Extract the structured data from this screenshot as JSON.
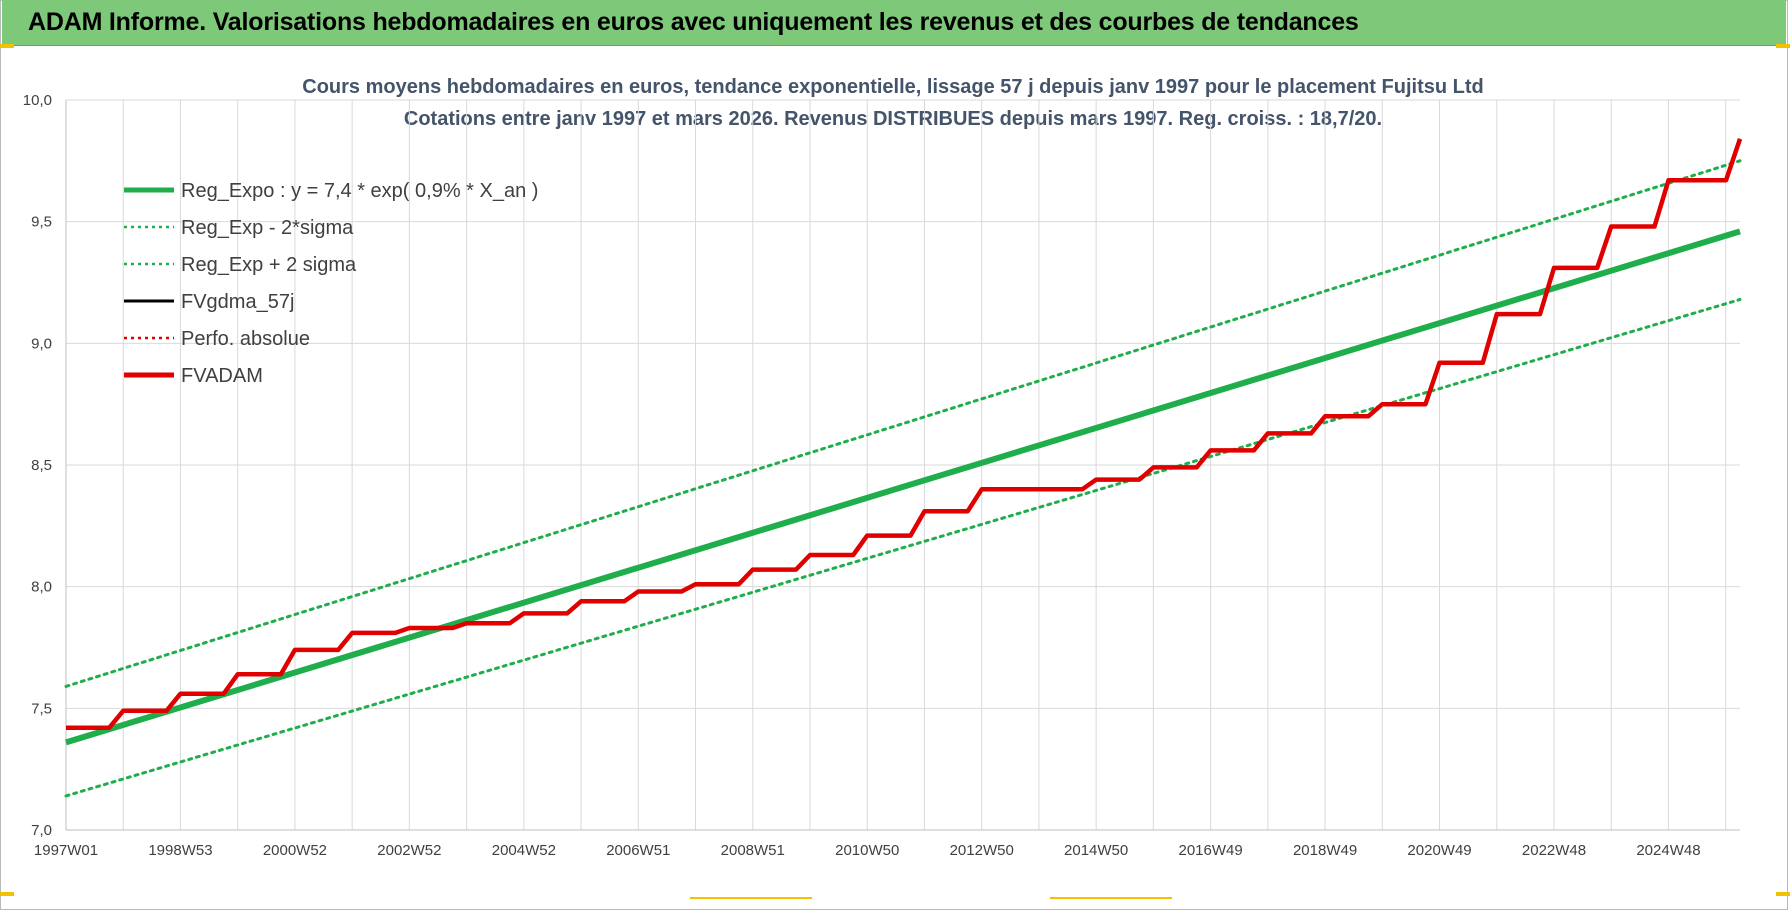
{
  "header": {
    "title": "ADAM Informe. Valorisations hebdomadaires en euros avec uniquement les revenus et des courbes de tendances"
  },
  "chart_data": {
    "type": "line",
    "title": "Cours moyens hebdomadaires en euros, tendance exponentielle, lissage 57 j depuis janv 1997 pour le placement Fujitsu Ltd",
    "subtitle": "Cotations entre janv 1997 et mars 2026. Revenus DISTRIBUES depuis mars 1997. Reg. croiss. : 18,7/20.",
    "xlabel": "",
    "ylabel": "",
    "x_range": [
      1997.0,
      2026.25
    ],
    "ylim": [
      7.0,
      10.0
    ],
    "y_ticks": [
      7.0,
      7.5,
      8.0,
      8.5,
      9.0,
      9.5,
      10.0
    ],
    "y_tick_labels": [
      "7,0",
      "7,5",
      "8,0",
      "8,5",
      "9,0",
      "9,5",
      "10,0"
    ],
    "x_tick_labels": [
      "1997W01",
      "1998W53",
      "2000W52",
      "2002W52",
      "2004W52",
      "2006W51",
      "2008W51",
      "2010W50",
      "2012W50",
      "2014W50",
      "2016W49",
      "2018W49",
      "2020W49",
      "2022W48",
      "2024W48"
    ],
    "x_tick_positions": [
      1997.0,
      1999.0,
      2001.0,
      2003.0,
      2005.0,
      2007.0,
      2009.0,
      2011.0,
      2013.0,
      2015.0,
      2017.0,
      2019.0,
      2021.0,
      2023.0,
      2025.0
    ],
    "grid": true,
    "legend_position": "top-left",
    "series": [
      {
        "name": "Reg_Expo : y = 7,4 * exp( 0,9% *  X_an )",
        "color": "#1fae4b",
        "style": "solid-thick",
        "x": [
          1997.0,
          2026.25
        ],
        "y": [
          7.36,
          9.46
        ]
      },
      {
        "name": "Reg_Exp - 2*sigma",
        "color": "#1fae4b",
        "style": "dotted",
        "x": [
          1997.0,
          2026.25
        ],
        "y": [
          7.14,
          9.18
        ]
      },
      {
        "name": "Reg_Exp + 2 sigma",
        "color": "#1fae4b",
        "style": "dotted",
        "x": [
          1997.0,
          2026.25
        ],
        "y": [
          7.59,
          9.75
        ]
      },
      {
        "name": "FVgdma_57j",
        "color": "#000000",
        "style": "solid-thin",
        "x": [
          1997.0,
          1998.0,
          1999.0,
          2000.0,
          2001.0,
          2002.0,
          2003.0,
          2004.0,
          2005.0,
          2006.0,
          2007.0,
          2008.0,
          2009.0,
          2010.0,
          2011.0,
          2012.0,
          2013.0,
          2014.0,
          2015.0,
          2016.0,
          2017.0,
          2018.0,
          2019.0,
          2020.0,
          2021.0,
          2022.0,
          2023.0,
          2024.0,
          2025.0,
          2026.25
        ],
        "y": [
          7.42,
          7.49,
          7.56,
          7.64,
          7.74,
          7.81,
          7.83,
          7.85,
          7.89,
          7.94,
          7.98,
          8.01,
          8.07,
          8.13,
          8.21,
          8.31,
          8.4,
          8.4,
          8.44,
          8.49,
          8.56,
          8.63,
          8.7,
          8.75,
          8.92,
          9.12,
          9.31,
          9.48,
          9.67,
          9.84
        ]
      },
      {
        "name": "Perfo. absolue",
        "color": "#e00000",
        "style": "dotted",
        "x": [],
        "y": []
      },
      {
        "name": "FVADAM",
        "color": "#e00000",
        "style": "solid-thick",
        "x": [
          1997.0,
          1998.0,
          1999.0,
          2000.0,
          2001.0,
          2002.0,
          2003.0,
          2004.0,
          2005.0,
          2006.0,
          2007.0,
          2008.0,
          2009.0,
          2010.0,
          2011.0,
          2012.0,
          2013.0,
          2014.0,
          2015.0,
          2016.0,
          2017.0,
          2018.0,
          2019.0,
          2020.0,
          2021.0,
          2022.0,
          2023.0,
          2024.0,
          2025.0,
          2026.25
        ],
        "y": [
          7.42,
          7.49,
          7.56,
          7.64,
          7.74,
          7.81,
          7.83,
          7.85,
          7.89,
          7.94,
          7.98,
          8.01,
          8.07,
          8.13,
          8.21,
          8.31,
          8.4,
          8.4,
          8.44,
          8.49,
          8.56,
          8.63,
          8.7,
          8.75,
          8.92,
          9.12,
          9.31,
          9.48,
          9.67,
          9.84
        ]
      }
    ]
  }
}
